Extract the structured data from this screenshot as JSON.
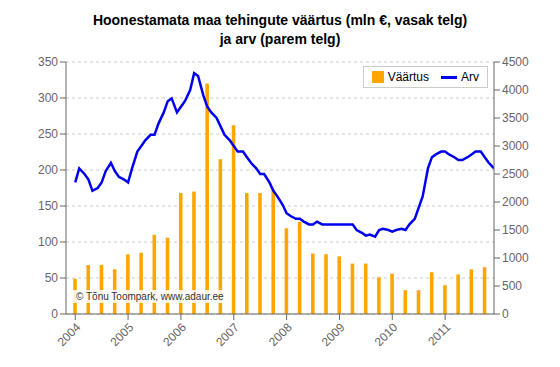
{
  "chart_data": {
    "type": "bar",
    "title": "Hoonestamata maa tehingute väärtus (mln €, vasak telg)\nja arv (parem telg)",
    "categories": [
      "2004",
      null,
      null,
      null,
      "2005",
      null,
      null,
      null,
      "2006",
      null,
      null,
      null,
      "2007",
      null,
      null,
      null,
      "2008",
      null,
      null,
      null,
      "2009",
      null,
      null,
      null,
      "2010",
      null,
      null,
      null,
      "2011",
      null,
      null,
      null
    ],
    "series": [
      {
        "name": "Väärtus",
        "type": "bar",
        "color": "#FFA500",
        "values": [
          49,
          68,
          68,
          62,
          83,
          85,
          110,
          106,
          168,
          170,
          320,
          215,
          262,
          168,
          168,
          172,
          119,
          128,
          84,
          83,
          80,
          70,
          70,
          51,
          56,
          33,
          33,
          58,
          40,
          55,
          62,
          65
        ]
      },
      {
        "name": "Arv",
        "type": "line",
        "axis": "y2",
        "color": "#0000EE",
        "x": [
          0.0,
          0.3,
          0.7,
          1.0,
          1.3,
          1.7,
          2.0,
          2.3,
          2.7,
          3.0,
          3.3,
          3.7,
          4.0,
          4.3,
          4.7,
          5.0,
          5.3,
          5.7,
          6.0,
          6.3,
          6.7,
          7.0,
          7.3,
          7.7,
          8.0,
          8.3,
          8.7,
          9.0,
          9.3,
          9.7,
          10.0,
          10.3,
          10.7,
          11.0,
          11.3,
          11.7,
          12.0,
          12.3,
          12.7,
          13.0,
          13.3,
          13.7,
          14.0,
          14.3,
          14.7,
          15.0,
          15.3,
          15.7,
          16.0,
          16.3,
          16.7,
          17.0,
          17.3,
          17.7,
          18.0,
          18.3,
          18.7,
          19.0,
          19.3,
          19.7,
          20.0,
          20.3,
          20.7,
          21.0,
          21.3,
          21.7,
          22.0,
          22.3,
          22.7,
          23.0,
          23.3,
          23.7,
          24.0,
          24.3,
          24.7,
          25.0,
          25.3,
          25.7,
          26.0,
          26.3,
          26.7,
          27.0,
          27.3,
          27.7,
          28.0,
          28.3,
          28.7,
          29.0,
          29.3,
          29.7,
          30.0,
          30.3,
          30.7,
          31.0,
          31.3,
          31.7
        ],
        "values": [
          2350,
          2600,
          2500,
          2400,
          2200,
          2250,
          2350,
          2550,
          2700,
          2550,
          2450,
          2400,
          2350,
          2600,
          2900,
          3000,
          3100,
          3200,
          3200,
          3400,
          3600,
          3800,
          3850,
          3600,
          3700,
          3800,
          4000,
          4300,
          4250,
          3900,
          3700,
          3600,
          3500,
          3350,
          3200,
          3100,
          3000,
          2900,
          2900,
          2800,
          2700,
          2600,
          2500,
          2500,
          2350,
          2200,
          2100,
          1950,
          1800,
          1750,
          1700,
          1700,
          1650,
          1600,
          1600,
          1650,
          1600,
          1600,
          1600,
          1600,
          1600,
          1600,
          1600,
          1600,
          1500,
          1450,
          1400,
          1420,
          1380,
          1500,
          1520,
          1500,
          1470,
          1500,
          1520,
          1500,
          1600,
          1700,
          1900,
          2100,
          2600,
          2800,
          2850,
          2900,
          2900,
          2850,
          2800,
          2750,
          2750,
          2800,
          2850,
          2900,
          2900,
          2800,
          2700,
          2600
        ]
      }
    ],
    "ylim": [
      0,
      350
    ],
    "yticks": [
      0,
      50,
      100,
      150,
      200,
      250,
      300,
      350
    ],
    "y2lim": [
      0,
      4500
    ],
    "y2ticks": [
      0,
      500,
      1000,
      1500,
      2000,
      2500,
      3000,
      3500,
      4000,
      4500
    ],
    "grid": true,
    "legend": "upper right",
    "annotations": [
      "© Tõnu Toompark, www.adaur.ee"
    ]
  }
}
